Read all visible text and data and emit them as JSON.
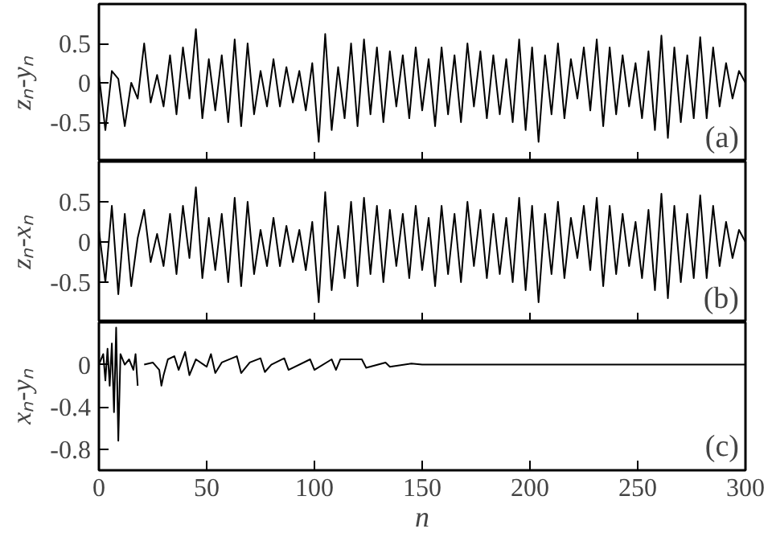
{
  "chart_data": [
    {
      "type": "line",
      "ylabel": "zₙ-yₙ",
      "annotations": [
        "(a)"
      ],
      "xlim": [
        0,
        300
      ],
      "xticks": [
        0,
        50,
        100,
        150,
        200,
        250,
        300
      ],
      "ylim": [
        -1,
        1
      ],
      "yticks": [
        -0.5,
        0,
        0.5
      ],
      "tick_labels": "y",
      "x": [
        0,
        3,
        6,
        9,
        12,
        15,
        18,
        21,
        24,
        27,
        30,
        33,
        36,
        39,
        42,
        45,
        48,
        51,
        54,
        57,
        60,
        63,
        66,
        69,
        72,
        75,
        78,
        81,
        84,
        87,
        90,
        93,
        96,
        99,
        102,
        105,
        108,
        111,
        114,
        117,
        120,
        123,
        126,
        129,
        132,
        135,
        138,
        141,
        144,
        147,
        150,
        153,
        156,
        159,
        162,
        165,
        168,
        171,
        174,
        177,
        180,
        183,
        186,
        189,
        192,
        195,
        198,
        201,
        204,
        207,
        210,
        213,
        216,
        219,
        222,
        225,
        228,
        231,
        234,
        237,
        240,
        243,
        246,
        249,
        252,
        255,
        258,
        261,
        264,
        267,
        270,
        273,
        276,
        279,
        282,
        285,
        288,
        291,
        294,
        297,
        300
      ],
      "series": [
        {
          "color": "#000000",
          "values": [
            0.1,
            -0.6,
            0.15,
            0.05,
            -0.55,
            0.0,
            -0.2,
            0.5,
            -0.25,
            0.1,
            -0.3,
            0.35,
            -0.4,
            0.45,
            -0.2,
            0.68,
            -0.45,
            0.3,
            -0.35,
            0.35,
            -0.5,
            0.55,
            -0.55,
            0.5,
            -0.4,
            0.15,
            -0.3,
            0.3,
            -0.3,
            0.2,
            -0.25,
            0.15,
            -0.35,
            0.25,
            -0.75,
            0.62,
            -0.6,
            0.2,
            -0.45,
            0.5,
            -0.55,
            0.55,
            -0.4,
            0.45,
            -0.5,
            0.4,
            -0.3,
            0.35,
            -0.45,
            0.45,
            -0.35,
            0.3,
            -0.55,
            0.45,
            -0.4,
            0.35,
            -0.5,
            0.5,
            -0.3,
            0.4,
            -0.45,
            0.35,
            -0.4,
            0.3,
            -0.5,
            0.55,
            -0.6,
            0.45,
            -0.75,
            0.35,
            -0.4,
            0.5,
            -0.45,
            0.3,
            -0.2,
            0.45,
            -0.35,
            0.55,
            -0.55,
            0.45,
            -0.4,
            0.35,
            -0.3,
            0.25,
            -0.45,
            0.4,
            -0.6,
            0.6,
            -0.7,
            0.45,
            -0.5,
            0.35,
            -0.45,
            0.58,
            -0.45,
            0.45,
            -0.3,
            0.25,
            -0.2,
            0.15,
            0.0
          ]
        }
      ]
    },
    {
      "type": "line",
      "ylabel": "zₙ-xₙ",
      "annotations": [
        "(b)"
      ],
      "xlim": [
        0,
        300
      ],
      "xticks": [
        0,
        50,
        100,
        150,
        200,
        250,
        300
      ],
      "ylim": [
        -1,
        1
      ],
      "yticks": [
        -0.5,
        0,
        0.5
      ],
      "tick_labels": "y",
      "x": [
        0,
        3,
        6,
        9,
        12,
        15,
        18,
        21,
        24,
        27,
        30,
        33,
        36,
        39,
        42,
        45,
        48,
        51,
        54,
        57,
        60,
        63,
        66,
        69,
        72,
        75,
        78,
        81,
        84,
        87,
        90,
        93,
        96,
        99,
        102,
        105,
        108,
        111,
        114,
        117,
        120,
        123,
        126,
        129,
        132,
        135,
        138,
        141,
        144,
        147,
        150,
        153,
        156,
        159,
        162,
        165,
        168,
        171,
        174,
        177,
        180,
        183,
        186,
        189,
        192,
        195,
        198,
        201,
        204,
        207,
        210,
        213,
        216,
        219,
        222,
        225,
        228,
        231,
        234,
        237,
        240,
        243,
        246,
        249,
        252,
        255,
        258,
        261,
        264,
        267,
        270,
        273,
        276,
        279,
        282,
        285,
        288,
        291,
        294,
        297,
        300
      ],
      "series": [
        {
          "color": "#000000",
          "values": [
            0.15,
            -0.5,
            0.45,
            -0.65,
            0.35,
            -0.55,
            0.05,
            0.4,
            -0.25,
            0.1,
            -0.3,
            0.35,
            -0.4,
            0.45,
            -0.2,
            0.68,
            -0.45,
            0.3,
            -0.35,
            0.35,
            -0.5,
            0.55,
            -0.55,
            0.5,
            -0.4,
            0.15,
            -0.3,
            0.3,
            -0.3,
            0.2,
            -0.25,
            0.15,
            -0.35,
            0.25,
            -0.75,
            0.62,
            -0.6,
            0.2,
            -0.45,
            0.5,
            -0.55,
            0.55,
            -0.4,
            0.45,
            -0.5,
            0.4,
            -0.3,
            0.35,
            -0.45,
            0.45,
            -0.35,
            0.3,
            -0.55,
            0.45,
            -0.4,
            0.35,
            -0.5,
            0.5,
            -0.3,
            0.4,
            -0.45,
            0.35,
            -0.4,
            0.3,
            -0.5,
            0.55,
            -0.6,
            0.45,
            -0.75,
            0.35,
            -0.4,
            0.5,
            -0.45,
            0.3,
            -0.2,
            0.45,
            -0.35,
            0.55,
            -0.55,
            0.45,
            -0.4,
            0.35,
            -0.3,
            0.25,
            -0.45,
            0.4,
            -0.6,
            0.6,
            -0.7,
            0.45,
            -0.5,
            0.35,
            -0.45,
            0.58,
            -0.45,
            0.45,
            -0.3,
            0.25,
            -0.2,
            0.15,
            0.0
          ]
        }
      ]
    },
    {
      "type": "line",
      "ylabel": "xₙ-yₙ",
      "xlabel": "n",
      "annotations": [
        "(c)"
      ],
      "xlim": [
        0,
        300
      ],
      "xticks": [
        0,
        50,
        100,
        150,
        200,
        250,
        300
      ],
      "ylim": [
        -1,
        0.4
      ],
      "yticks": [
        -0.8,
        -0.4,
        0
      ],
      "x": [
        0,
        2,
        3,
        4,
        5,
        6,
        7,
        8,
        9,
        10,
        12,
        14,
        16,
        17,
        18,
        19,
        20,
        21,
        25,
        28,
        29,
        30,
        32,
        35,
        37,
        40,
        42,
        45,
        50,
        52,
        54,
        57,
        64,
        66,
        70,
        75,
        77,
        80,
        86,
        88,
        98,
        100,
        108,
        110,
        112,
        122,
        124,
        133,
        135,
        145,
        150,
        200,
        300
      ],
      "series": [
        {
          "color": "#000000",
          "values": [
            0,
            0.1,
            -0.15,
            0.15,
            -0.2,
            0.2,
            -0.45,
            0.35,
            -0.72,
            0.1,
            0,
            0.05,
            -0.05,
            0.1,
            -0.2,
            null,
            null,
            0,
            0.02,
            -0.05,
            -0.2,
            -0.1,
            0.05,
            0.08,
            -0.05,
            0.12,
            -0.1,
            0.05,
            -0.02,
            0.1,
            -0.08,
            0.02,
            0.08,
            -0.08,
            0.02,
            0.06,
            -0.07,
            0,
            0.06,
            -0.05,
            0.05,
            -0.05,
            0.05,
            -0.05,
            0.05,
            0.05,
            -0.03,
            0.02,
            -0.02,
            0.01,
            0,
            0,
            0
          ]
        }
      ]
    }
  ]
}
